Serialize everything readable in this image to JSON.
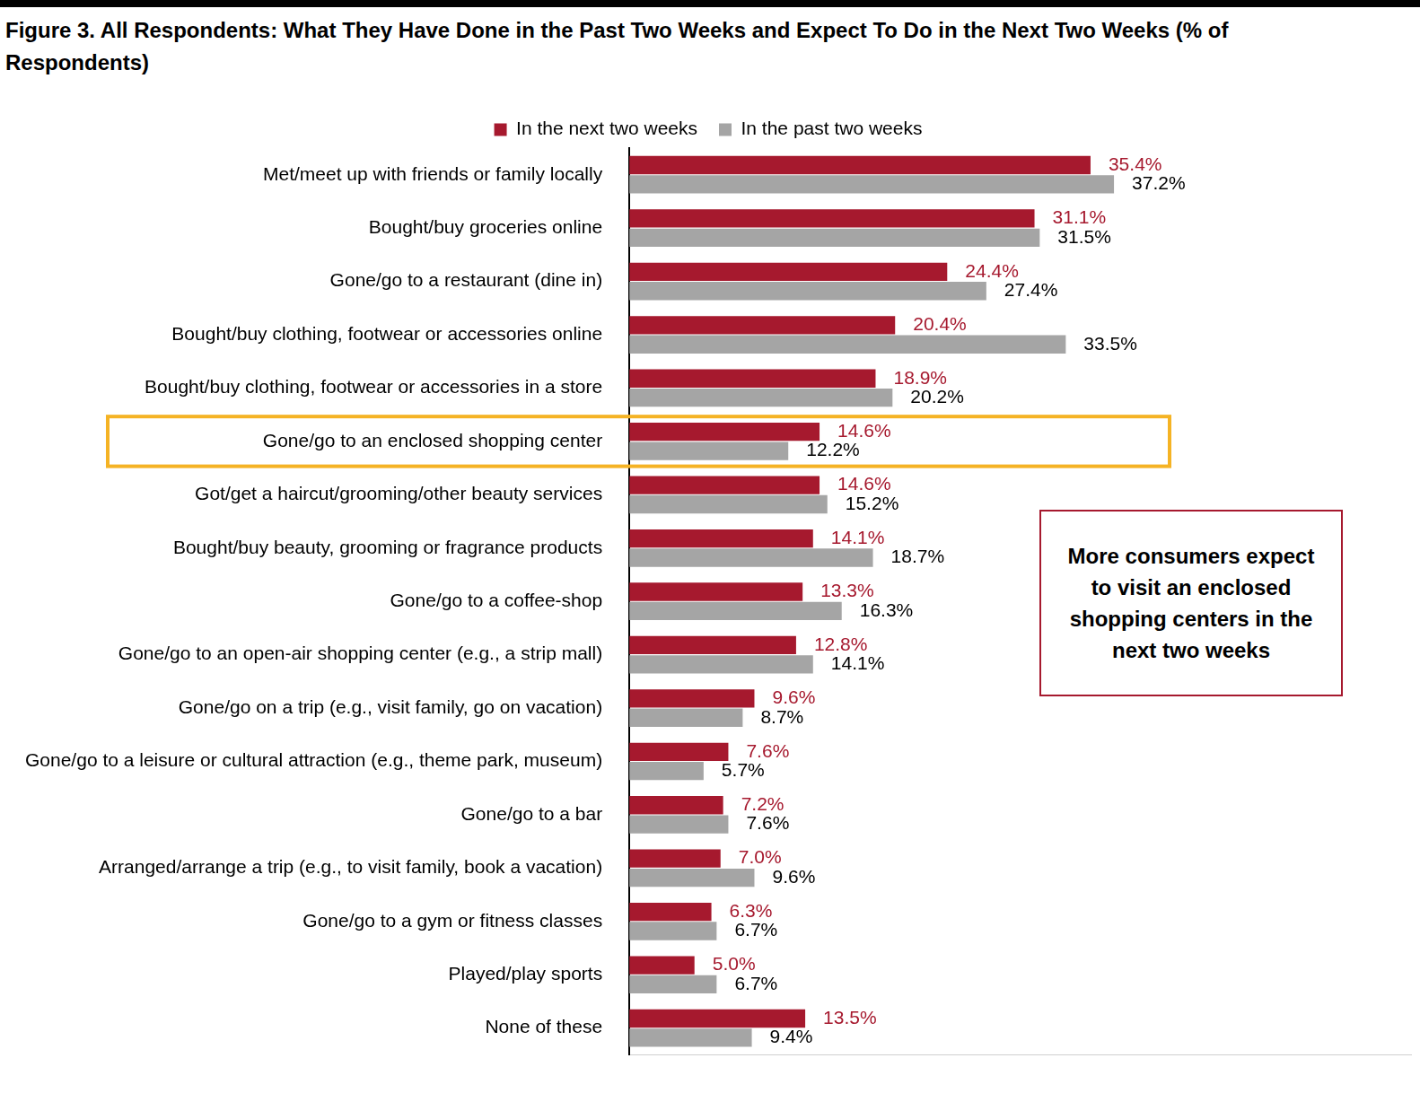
{
  "chart_data": {
    "type": "bar",
    "orientation": "horizontal",
    "title": "Figure 3. All Respondents: What They Have Done in the Past Two Weeks and Expect To Do in the Next Two Weeks (% of Respondents)",
    "annotations": [
      "More consumers expect to visit an enclosed shopping centers in the next two weeks"
    ],
    "categories": [
      "Met/meet up with friends or family locally",
      "Bought/buy groceries online",
      "Gone/go to a restaurant (dine in)",
      "Bought/buy clothing, footwear or accessories online",
      "Bought/buy clothing, footwear or accessories in a store",
      "Gone/go to an enclosed shopping center",
      "Got/get a haircut/grooming/other beauty services",
      "Bought/buy beauty, grooming or fragrance products",
      "Gone/go to a coffee-shop",
      "Gone/go to an open-air shopping center (e.g., a strip mall)",
      "Gone/go on a trip (e.g., visit family, go on vacation)",
      "Gone/go to a leisure or cultural attraction (e.g., theme park, museum)",
      "Gone/go to a bar",
      "Arranged/arrange a trip (e.g., to visit family, book a vacation)",
      "Gone/go to a gym or fitness classes",
      "Played/play sports",
      "None of these"
    ],
    "series": [
      {
        "name": "In the next two weeks",
        "color": "#A6192E",
        "values": [
          35.4,
          31.1,
          24.4,
          20.4,
          18.9,
          14.6,
          14.6,
          14.1,
          13.3,
          12.8,
          9.6,
          7.6,
          7.2,
          7.0,
          6.3,
          5.0,
          13.5
        ],
        "value_labels": [
          "35.4%",
          "31.1%",
          "24.4%",
          "20.4%",
          "18.9%",
          "14.6%",
          "14.6%",
          "14.1%",
          "13.3%",
          "12.8%",
          "9.6%",
          "7.6%",
          "7.2%",
          "7.0%",
          "6.3%",
          "5.0%",
          "13.5%"
        ]
      },
      {
        "name": "In the past two weeks",
        "color": "#A5A5A5",
        "values": [
          37.2,
          31.5,
          27.4,
          33.5,
          20.2,
          12.2,
          15.2,
          18.7,
          16.3,
          14.1,
          8.7,
          5.7,
          7.6,
          9.6,
          6.7,
          6.7,
          9.4
        ],
        "value_labels": [
          "37.2%",
          "31.5%",
          "27.4%",
          "33.5%",
          "20.2%",
          "12.2%",
          "15.2%",
          "18.7%",
          "16.3%",
          "14.1%",
          "8.7%",
          "5.7%",
          "7.6%",
          "9.6%",
          "6.7%",
          "6.7%",
          "9.4%"
        ]
      }
    ],
    "xlim": [
      0,
      60
    ],
    "grid": false,
    "legend": "top",
    "data_labels": true,
    "tick_labels": "y"
  }
}
